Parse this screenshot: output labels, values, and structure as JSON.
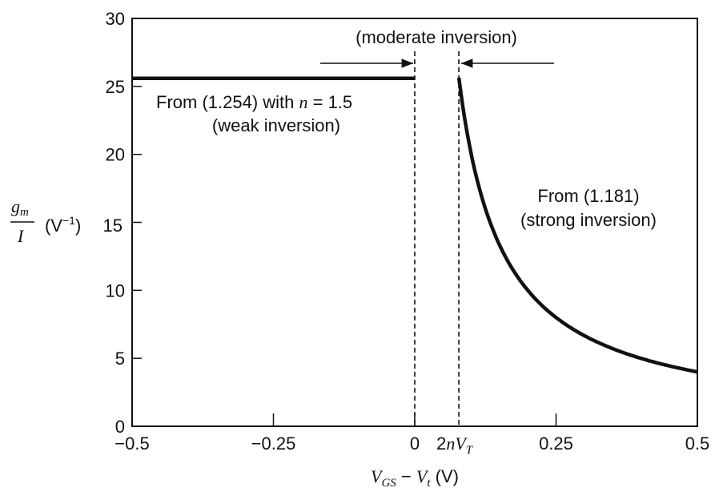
{
  "chart_data": {
    "type": "line",
    "xlabel": {
      "main": "V",
      "main_sub": "GS",
      "minus": " − ",
      "var": "V",
      "var_sub": "t",
      "unit": " (V)"
    },
    "ylabel": {
      "num": "g",
      "num_sub": "m",
      "den": "I",
      "unit": "(V",
      "unit_sup": "−1",
      "unit_close": ")"
    },
    "xlim": [
      -0.5,
      0.5
    ],
    "ylim": [
      0,
      30
    ],
    "x_ticks": [
      {
        "value": -0.5,
        "label": "−0.5"
      },
      {
        "value": -0.25,
        "label": "−0.25"
      },
      {
        "value": 0,
        "label": "0"
      },
      {
        "value": 0.25,
        "label": "0.25"
      },
      {
        "value": 0.5,
        "label": "0.5"
      }
    ],
    "special_x_tick": {
      "value": 0.078,
      "label_prefix": "2",
      "label_var": "nV",
      "label_sub": "T"
    },
    "y_ticks": [
      {
        "value": 0,
        "label": "0"
      },
      {
        "value": 5,
        "label": "5"
      },
      {
        "value": 10,
        "label": "10"
      },
      {
        "value": 15,
        "label": ""
      },
      {
        "value": 20,
        "label": "20"
      },
      {
        "value": 25,
        "label": "25"
      },
      {
        "value": 30,
        "label": "30"
      }
    ],
    "y_tick_15_label": "15",
    "dashed_lines_x": [
      0,
      0.078
    ],
    "series": [
      {
        "id": "weak",
        "points": [
          [
            -0.5,
            25.6
          ],
          [
            0,
            25.6
          ]
        ]
      },
      {
        "id": "strong",
        "function": "2/x",
        "x_start": 0.078,
        "x_end": 0.5,
        "points": [
          [
            0.078,
            25.6
          ],
          [
            0.1,
            20
          ],
          [
            0.15,
            13.3
          ],
          [
            0.2,
            10
          ],
          [
            0.25,
            8
          ],
          [
            0.3,
            6.7
          ],
          [
            0.35,
            5.7
          ],
          [
            0.4,
            5
          ],
          [
            0.45,
            4.4
          ],
          [
            0.5,
            4
          ]
        ]
      }
    ],
    "annotations": {
      "moderate": "(moderate inversion)",
      "weak_line1_prefix": "From (1.254) with ",
      "weak_line1_var": "n",
      "weak_line1_suffix": " = 1.5",
      "weak_line2": "(weak inversion)",
      "strong_line1": "From (1.181)",
      "strong_line2": "(strong inversion)"
    },
    "grid": false
  }
}
